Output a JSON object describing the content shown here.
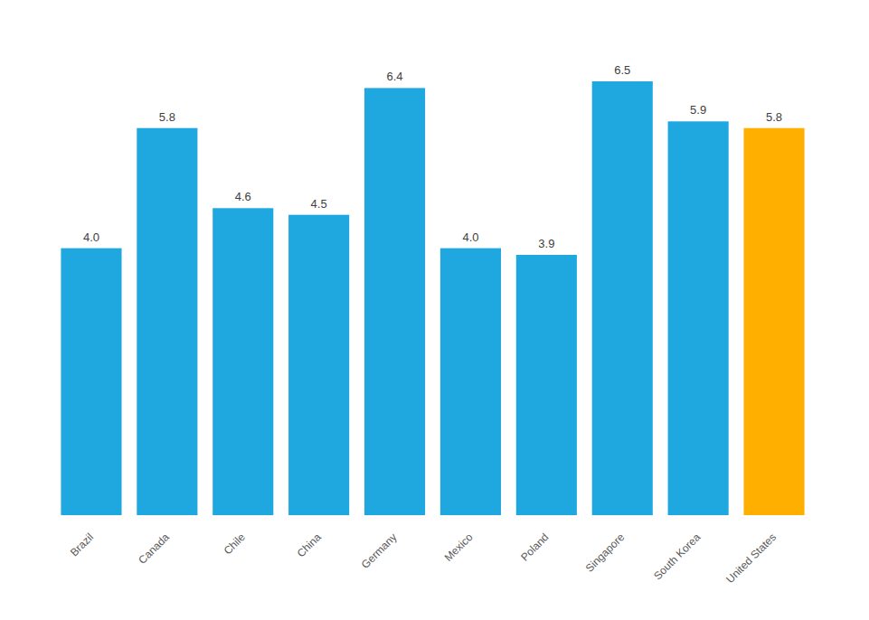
{
  "chart_data": {
    "type": "bar",
    "categories": [
      "Brazil",
      "Canada",
      "Chile",
      "China",
      "Germany",
      "Mexico",
      "Poland",
      "Singapore",
      "South Korea",
      "United States"
    ],
    "values": [
      4.0,
      5.8,
      4.6,
      4.5,
      6.4,
      4.0,
      3.9,
      6.5,
      5.9,
      5.8
    ],
    "value_labels": [
      "4.0",
      "5.8",
      "4.6",
      "4.5",
      "6.4",
      "4.0",
      "3.9",
      "6.5",
      "5.9",
      "5.8"
    ],
    "colors": [
      "#1fa8e0",
      "#1fa8e0",
      "#1fa8e0",
      "#1fa8e0",
      "#1fa8e0",
      "#1fa8e0",
      "#1fa8e0",
      "#1fa8e0",
      "#1fa8e0",
      "#ffaf00"
    ],
    "ylim": [
      0,
      6.5
    ],
    "data_labels": true,
    "grid": false,
    "tick_labels": "x"
  }
}
